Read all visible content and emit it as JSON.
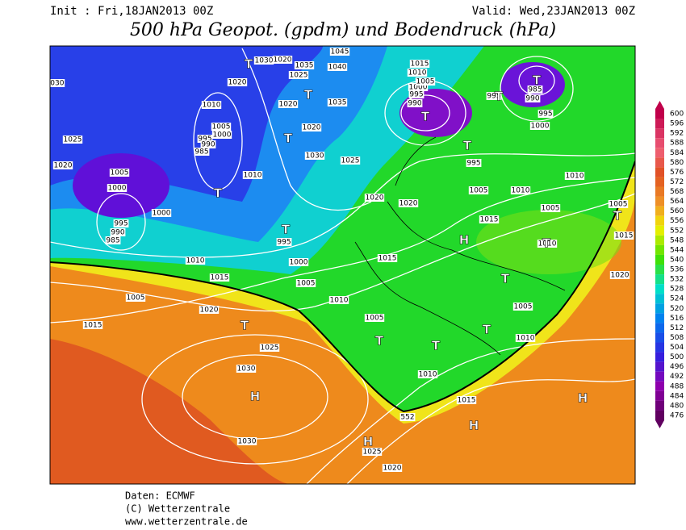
{
  "header": {
    "init": "Init : Fri,18JAN2013 00Z",
    "valid": "Valid: Wed,23JAN2013 00Z",
    "title": "500 hPa Geopot. (gpdm) und Bodendruck (hPa)"
  },
  "colorbar": {
    "ticks": [
      600,
      596,
      592,
      588,
      584,
      580,
      576,
      572,
      568,
      564,
      560,
      556,
      552,
      548,
      544,
      540,
      536,
      532,
      528,
      524,
      520,
      516,
      512,
      508,
      504,
      500,
      496,
      492,
      488,
      484,
      480,
      476
    ]
  },
  "map": {
    "labels": [
      "1030",
      "1025",
      "1020",
      "1005",
      "1000",
      "995",
      "990",
      "985",
      "1000",
      "1010",
      "1015",
      "1005",
      "1015",
      "1020",
      "1025",
      "1030",
      "1030",
      "1025",
      "1020",
      "1015",
      "1010",
      "1005",
      "1010",
      "1005",
      "1000",
      "995",
      "1015",
      "1020",
      "1020",
      "1025",
      "1030",
      "1020",
      "1020",
      "1025",
      "1035",
      "1040",
      "1045",
      "1030",
      "1020",
      "1020",
      "1010",
      "1005",
      "1000",
      "995",
      "990",
      "985",
      "1010",
      "1015",
      "1005",
      "1010",
      "1010",
      "1005",
      "995",
      "1000",
      "995",
      "990",
      "985",
      "995",
      "990",
      "995",
      "1000",
      "1005",
      "1010",
      "1015",
      "1005",
      "1015",
      "1020",
      "1010",
      "1005",
      "1010",
      "1035",
      "552",
      "T",
      "T",
      "T",
      "T",
      "T",
      "T",
      "T",
      "T",
      "T",
      "T",
      "T",
      "T",
      "T",
      "T",
      "T",
      "T",
      "H",
      "H",
      "H",
      "H",
      "H"
    ]
  },
  "footer": [
    "Daten: ECMWF",
    "(C) Wetterzentrale",
    "www.wetterzentrale.de"
  ]
}
